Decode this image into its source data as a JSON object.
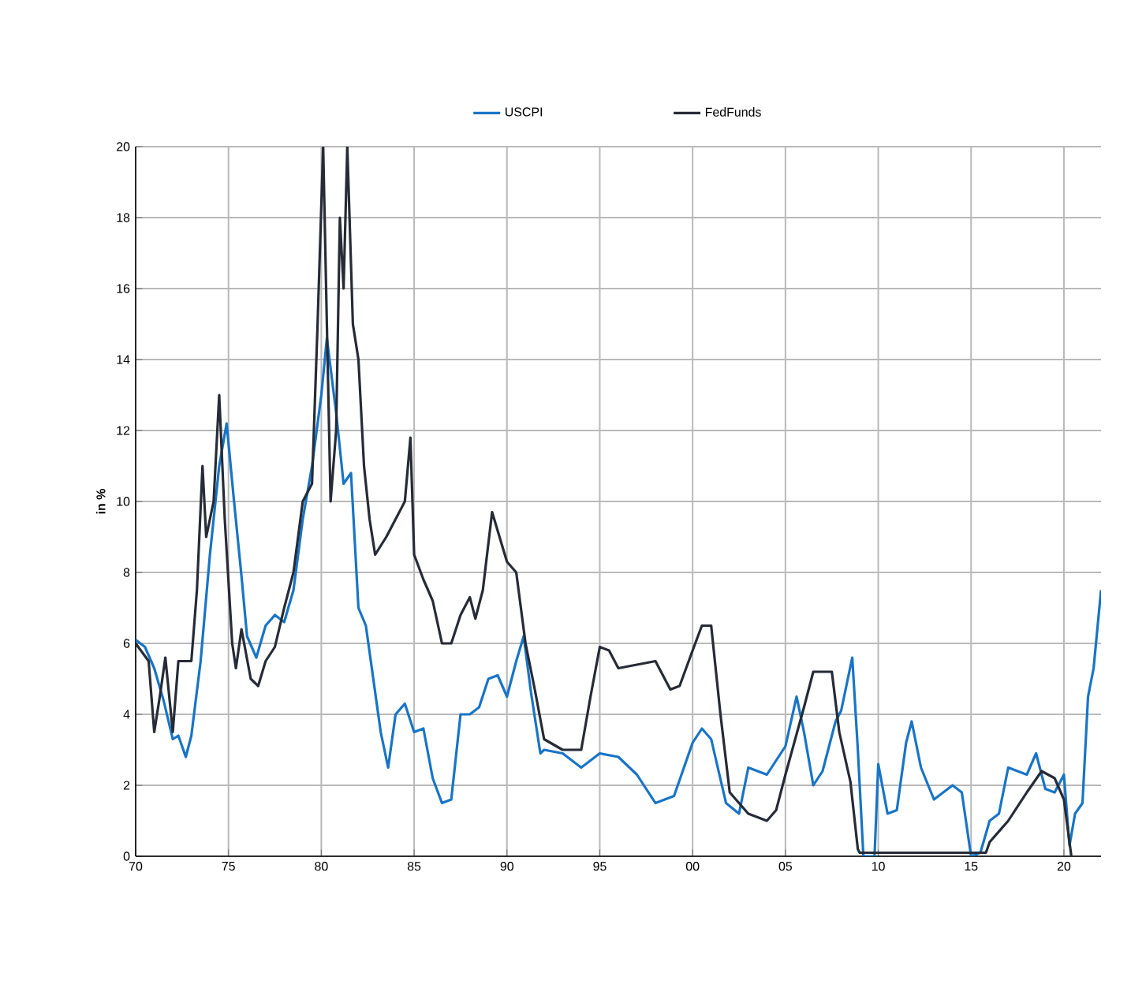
{
  "chart_data": {
    "type": "line",
    "ylabel": "in %",
    "xlim": [
      1970,
      2022
    ],
    "ylim": [
      0,
      20
    ],
    "xticks": [
      {
        "value": 1970,
        "label": "70"
      },
      {
        "value": 1975,
        "label": "75"
      },
      {
        "value": 1980,
        "label": "80"
      },
      {
        "value": 1985,
        "label": "85"
      },
      {
        "value": 1990,
        "label": "90"
      },
      {
        "value": 1995,
        "label": "95"
      },
      {
        "value": 2000,
        "label": "00"
      },
      {
        "value": 2005,
        "label": "05"
      },
      {
        "value": 2010,
        "label": "10"
      },
      {
        "value": 2015,
        "label": "15"
      },
      {
        "value": 2020,
        "label": "20"
      }
    ],
    "yticks": [
      0,
      2,
      4,
      6,
      8,
      10,
      12,
      14,
      16,
      18,
      20
    ],
    "grid": true,
    "legend": "top",
    "series": [
      {
        "name": "USCPI",
        "color": "#1874c6",
        "x": [
          1970,
          1970.5,
          1971,
          1971.5,
          1972,
          1972.3,
          1972.7,
          1973,
          1973.5,
          1974,
          1974.5,
          1974.9,
          1975.3,
          1975.7,
          1976,
          1976.5,
          1977,
          1977.5,
          1978,
          1978.5,
          1979,
          1979.5,
          1980,
          1980.3,
          1980.8,
          1981.2,
          1981.6,
          1982,
          1982.4,
          1982.8,
          1983.2,
          1983.6,
          1984,
          1984.5,
          1985,
          1985.5,
          1986,
          1986.5,
          1987,
          1987.5,
          1988,
          1988.5,
          1989,
          1989.5,
          1990,
          1990.5,
          1990.9,
          1991.3,
          1991.8,
          1992,
          1993,
          1994,
          1995,
          1996,
          1997,
          1998,
          1999,
          2000,
          2000.5,
          2001,
          2001.8,
          2002.5,
          2003,
          2004,
          2005,
          2005.6,
          2006,
          2006.5,
          2007,
          2007.7,
          2008,
          2008.6,
          2008.9,
          2009.2,
          2009.8,
          2010,
          2010.5,
          2011,
          2011.5,
          2011.8,
          2012.3,
          2013,
          2014,
          2014.5,
          2015,
          2015.5,
          2016,
          2016.5,
          2017,
          2018,
          2018.5,
          2019,
          2019.5,
          2020,
          2020.3,
          2020.6,
          2021,
          2021.3,
          2021.6,
          2022
        ],
        "values": [
          6.1,
          5.9,
          5.3,
          4.4,
          3.3,
          3.4,
          2.8,
          3.4,
          5.5,
          8.5,
          11,
          12.2,
          10,
          7.9,
          6.2,
          5.6,
          6.5,
          6.8,
          6.6,
          7.5,
          9.5,
          11,
          13,
          14.6,
          12.5,
          10.5,
          10.8,
          7,
          6.5,
          5,
          3.5,
          2.5,
          4,
          4.3,
          3.5,
          3.6,
          2.2,
          1.5,
          1.6,
          4,
          4,
          4.2,
          5,
          5.1,
          4.5,
          5.5,
          6.2,
          4.6,
          2.9,
          3,
          2.9,
          2.5,
          2.9,
          2.8,
          2.3,
          1.5,
          1.7,
          3.2,
          3.6,
          3.3,
          1.5,
          1.2,
          2.5,
          2.3,
          3.1,
          4.5,
          3.5,
          2,
          2.4,
          3.8,
          4.1,
          5.6,
          3,
          0,
          0,
          2.6,
          1.2,
          1.3,
          3.2,
          3.8,
          2.5,
          1.6,
          2,
          1.8,
          0,
          0.1,
          1,
          1.2,
          2.5,
          2.3,
          2.9,
          1.9,
          1.8,
          2.3,
          0.3,
          1.2,
          1.5,
          4.5,
          5.3,
          7.5
        ]
      },
      {
        "name": "FedFunds",
        "color": "#262b36",
        "x": [
          1970,
          1970.7,
          1971,
          1971.3,
          1971.6,
          1972,
          1972.3,
          1973,
          1973.3,
          1973.6,
          1973.8,
          1974.2,
          1974.5,
          1974.8,
          1975.2,
          1975.4,
          1975.7,
          1976.2,
          1976.6,
          1977,
          1977.5,
          1978,
          1978.5,
          1979,
          1979.5,
          1979.8,
          1980.1,
          1980.5,
          1980.8,
          1981,
          1981.2,
          1981.4,
          1981.7,
          1982,
          1982.3,
          1982.6,
          1982.9,
          1983.5,
          1984,
          1984.5,
          1984.8,
          1985,
          1985.5,
          1986,
          1986.5,
          1987,
          1987.5,
          1988,
          1988.3,
          1988.7,
          1989.2,
          1989.6,
          1990,
          1990.5,
          1991,
          1991.5,
          1992,
          1993,
          1994,
          1994.5,
          1995,
          1995.5,
          1996,
          1997,
          1998,
          1998.8,
          1999.3,
          2000,
          2000.5,
          2001,
          2001.5,
          2002,
          2003,
          2004,
          2004.5,
          2005,
          2006,
          2006.5,
          2007.5,
          2007.9,
          2008.5,
          2008.9,
          2009,
          2015.8,
          2016,
          2017,
          2018,
          2018.8,
          2019.5,
          2020,
          2020.4
        ],
        "values": [
          6,
          5.5,
          3.5,
          4.5,
          5.6,
          3.5,
          5.5,
          5.5,
          7.5,
          11,
          9,
          10,
          13,
          9.5,
          6,
          5.3,
          6.4,
          5,
          4.8,
          5.5,
          5.9,
          7,
          8,
          10,
          10.5,
          15,
          20,
          10,
          12,
          18,
          16,
          20,
          15,
          14,
          11,
          9.5,
          8.5,
          9,
          9.5,
          10,
          11.8,
          8.5,
          7.8,
          7.2,
          6,
          6,
          6.8,
          7.3,
          6.7,
          7.5,
          9.7,
          9,
          8.3,
          8,
          6,
          4.7,
          3.3,
          3,
          3,
          4.5,
          5.9,
          5.8,
          5.3,
          5.4,
          5.5,
          4.7,
          4.8,
          5.8,
          6.5,
          6.5,
          4,
          1.8,
          1.2,
          1,
          1.3,
          2.3,
          4.2,
          5.2,
          5.2,
          3.5,
          2.1,
          0.2,
          0.1,
          0.1,
          0.4,
          1,
          1.8,
          2.4,
          2.2,
          1.6,
          0
        ]
      }
    ]
  }
}
